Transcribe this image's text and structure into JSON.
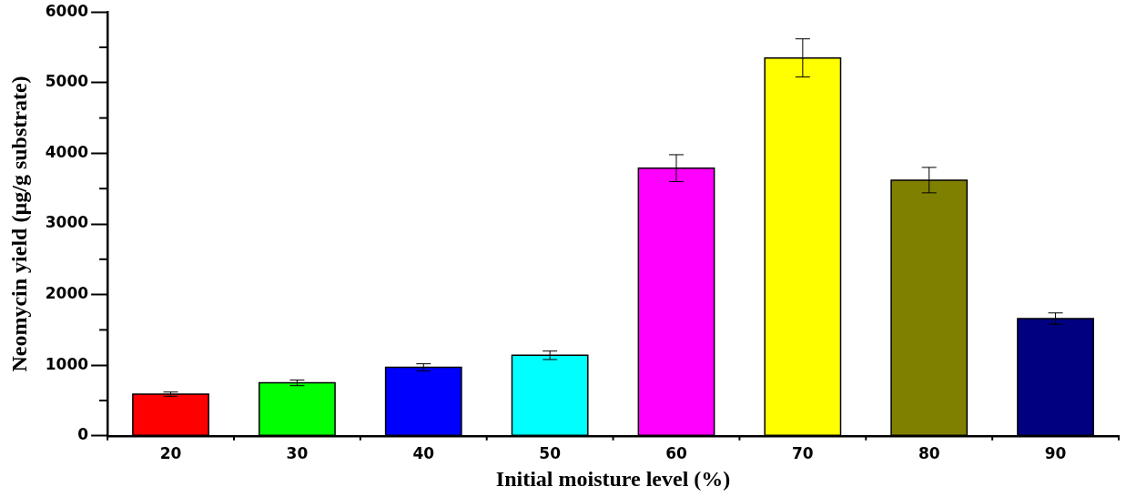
{
  "chart_data": {
    "type": "bar",
    "xlabel": "Initial moisture level (%)",
    "ylabel": "Neomycin yield (µg/g substrate)",
    "categories": [
      "20",
      "30",
      "40",
      "50",
      "60",
      "70",
      "80",
      "90"
    ],
    "values": [
      590,
      750,
      970,
      1140,
      3790,
      5350,
      3620,
      1660
    ],
    "colors": [
      "#ff0000",
      "#00ff00",
      "#0000ff",
      "#00ffff",
      "#ff00ff",
      "#ffff00",
      "#808000",
      "#000080"
    ],
    "errors": [
      30,
      40,
      50,
      60,
      190,
      270,
      180,
      80
    ],
    "ylim": [
      0,
      6000
    ],
    "yticks": [
      0,
      1000,
      2000,
      3000,
      4000,
      5000,
      6000
    ],
    "grid": false,
    "legend": false
  }
}
